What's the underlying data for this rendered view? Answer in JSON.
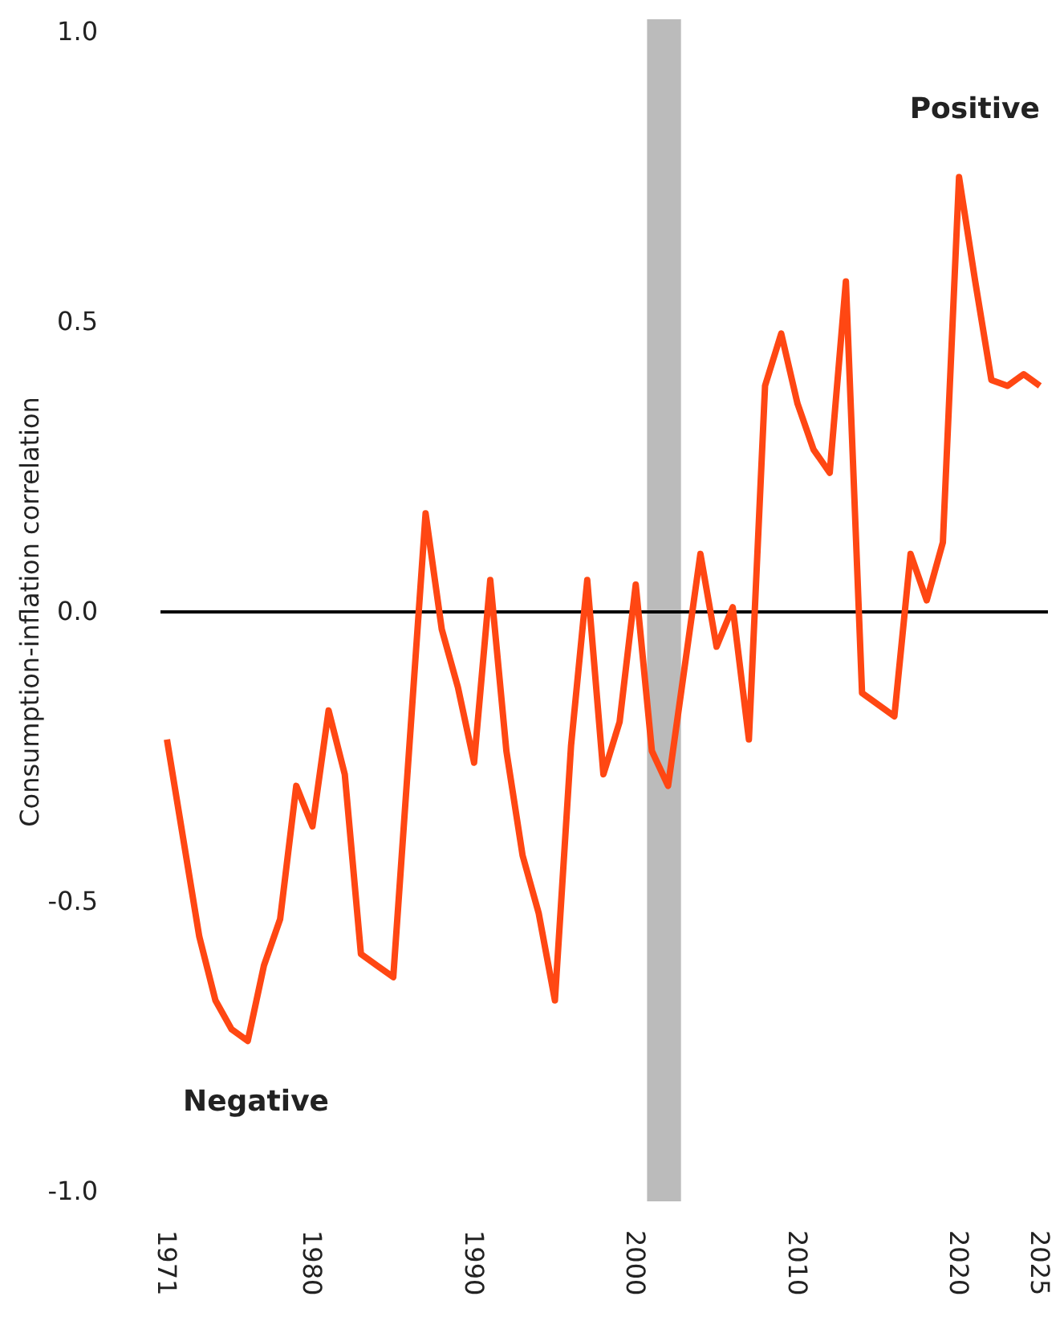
{
  "chart_data": {
    "type": "line",
    "ylabel": "Consumption-inflation correlation",
    "x": [
      1971,
      1972,
      1973,
      1974,
      1975,
      1976,
      1977,
      1978,
      1979,
      1980,
      1981,
      1982,
      1983,
      1984,
      1985,
      1986,
      1987,
      1988,
      1989,
      1990,
      1991,
      1992,
      1993,
      1994,
      1995,
      1996,
      1997,
      1998,
      1999,
      2000,
      2001,
      2002,
      2003,
      2004,
      2005,
      2006,
      2007,
      2008,
      2009,
      2010,
      2011,
      2012,
      2013,
      2014,
      2015,
      2016,
      2017,
      2018,
      2019,
      2020,
      2021,
      2022,
      2023,
      2024,
      2025
    ],
    "series": [
      {
        "color": "#ff4713",
        "values": [
          -0.22,
          -0.39,
          -0.56,
          -0.67,
          -0.72,
          -0.74,
          -0.61,
          -0.53,
          -0.3,
          -0.37,
          -0.17,
          -0.28,
          -0.59,
          -0.61,
          -0.63,
          -0.23,
          0.17,
          -0.03,
          -0.13,
          -0.26,
          0.055,
          -0.24,
          -0.42,
          -0.52,
          -0.67,
          -0.23,
          0.055,
          -0.28,
          -0.19,
          0.047,
          -0.24,
          -0.3,
          -0.1,
          0.1,
          -0.06,
          0.008,
          -0.22,
          0.39,
          0.48,
          0.36,
          0.28,
          0.24,
          0.57,
          -0.14,
          -0.16,
          -0.18,
          0.1,
          0.02,
          0.12,
          0.75,
          0.57,
          0.4,
          0.39,
          0.41,
          0.39
        ]
      }
    ],
    "xlim": [
      1970.6,
      2025.5
    ],
    "xticks": [
      1971,
      1980,
      1990,
      2000,
      2010,
      2020,
      2025
    ],
    "ylim": [
      -1,
      1
    ],
    "yticks": [
      {
        "value": -1,
        "label": "-1.0"
      },
      {
        "value": -0.5,
        "label": "-0.5"
      },
      {
        "value": 0,
        "label": "0.0"
      },
      {
        "value": 0.5,
        "label": "0.5"
      },
      {
        "value": 1,
        "label": "1.0"
      }
    ],
    "ref_lines": [
      {
        "axis": "y",
        "value": 0,
        "color": "#000000"
      }
    ],
    "bands": [
      {
        "axis": "x",
        "from": 2000.7,
        "to": 2002.8,
        "color": "#bbbbbb"
      }
    ],
    "annotations": [
      "Positive",
      "Negative"
    ],
    "grid": false,
    "marker": "none",
    "line_style": "solid"
  }
}
